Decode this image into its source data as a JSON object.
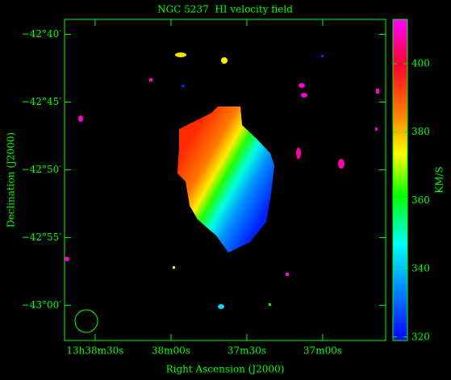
{
  "chart_data": {
    "type": "velocity-field",
    "title": "NGC 5237  HI velocity field",
    "x_label": "Right Ascension (J2000)",
    "y_label": "Declination (J2000)",
    "colorbar_label": "KM/S",
    "xlim": [
      2322.1,
      2195.1
    ],
    "xticks": [
      {
        "value": 2310,
        "label": "13h38m30s"
      },
      {
        "value": 2280,
        "label": "38m00s"
      },
      {
        "value": 2250,
        "label": "37m30s"
      },
      {
        "value": 2220,
        "label": "37m00s"
      }
    ],
    "ylim": [
      -43.0433,
      -42.6483
    ],
    "yticks": [
      {
        "value": -42.6667,
        "label": "−42°40′"
      },
      {
        "value": -42.75,
        "label": "−42°45′"
      },
      {
        "value": -42.8333,
        "label": "−42°50′"
      },
      {
        "value": -42.9167,
        "label": "−42°55′"
      },
      {
        "value": -43.0,
        "label": "−43°00′"
      }
    ],
    "clim": [
      319,
      413
    ],
    "cticks": [
      320,
      340,
      360,
      380,
      400
    ]
  }
}
